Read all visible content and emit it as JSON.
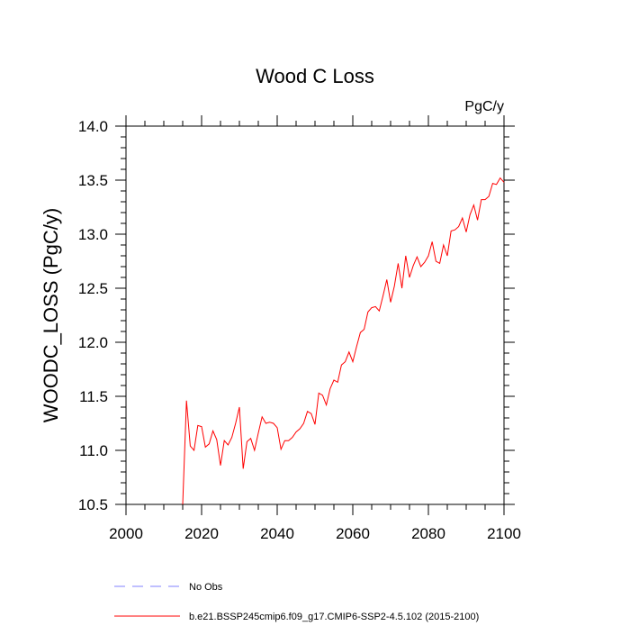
{
  "chart_data": {
    "type": "line",
    "title": "Wood C Loss",
    "units": "PgC/y",
    "y_label": "WOODC_LOSS  (PgC/y)",
    "x": [
      2015,
      2016,
      2017,
      2018,
      2019,
      2020,
      2021,
      2022,
      2023,
      2024,
      2025,
      2026,
      2027,
      2028,
      2029,
      2030,
      2031,
      2032,
      2033,
      2034,
      2035,
      2036,
      2037,
      2038,
      2039,
      2040,
      2041,
      2042,
      2043,
      2044,
      2045,
      2046,
      2047,
      2048,
      2049,
      2050,
      2051,
      2052,
      2053,
      2054,
      2055,
      2056,
      2057,
      2058,
      2059,
      2060,
      2061,
      2062,
      2063,
      2064,
      2065,
      2066,
      2067,
      2068,
      2069,
      2070,
      2071,
      2072,
      2073,
      2074,
      2075,
      2076,
      2077,
      2078,
      2079,
      2080,
      2081,
      2082,
      2083,
      2084,
      2085,
      2086,
      2087,
      2088,
      2089,
      2090,
      2091,
      2092,
      2093,
      2094,
      2095,
      2096,
      2097,
      2098,
      2099,
      2100
    ],
    "series": [
      {
        "name": "No Obs",
        "color": "#8080ff",
        "dashed": true,
        "values": [
          null,
          null,
          null,
          null,
          null,
          null,
          null,
          null,
          null,
          null,
          null,
          null,
          null,
          null,
          null,
          null,
          null,
          null,
          null,
          null,
          null,
          null,
          null,
          null,
          null,
          null,
          null,
          null,
          null,
          null,
          null,
          null,
          null,
          null,
          null,
          null,
          null,
          null,
          null,
          null,
          null,
          null,
          null,
          null,
          null,
          null,
          null,
          null,
          null,
          null,
          null,
          null,
          null,
          null,
          null,
          null,
          null,
          null,
          null,
          null,
          null,
          null,
          null,
          null,
          null,
          null,
          null,
          null,
          null,
          null,
          null,
          null,
          null,
          null,
          null,
          null,
          null,
          null,
          null,
          null,
          null,
          null,
          null,
          null,
          null,
          null
        ]
      },
      {
        "name": "b.e21.BSSP245cmip6.f09_g17.CMIP6-SSP2-4.5.102 (2015-2100)",
        "color": "#ff0000",
        "dashed": false,
        "values": [
          10.5,
          11.46,
          11.04,
          11.0,
          11.23,
          11.22,
          11.03,
          11.06,
          11.18,
          11.1,
          10.86,
          11.09,
          11.05,
          11.12,
          11.25,
          11.4,
          10.83,
          11.08,
          11.11,
          11.0,
          11.16,
          11.31,
          11.25,
          11.26,
          11.25,
          11.21,
          11.01,
          11.09,
          11.09,
          11.12,
          11.17,
          11.2,
          11.25,
          11.36,
          11.34,
          11.24,
          11.53,
          11.51,
          11.42,
          11.57,
          11.65,
          11.63,
          11.79,
          11.82,
          11.91,
          11.82,
          11.96,
          12.09,
          12.12,
          12.28,
          12.32,
          12.33,
          12.29,
          12.43,
          12.58,
          12.37,
          12.52,
          12.73,
          12.5,
          12.8,
          12.6,
          12.71,
          12.79,
          12.7,
          12.74,
          12.8,
          12.93,
          12.75,
          12.73,
          12.9,
          12.8,
          13.03,
          13.04,
          13.07,
          13.15,
          13.02,
          13.18,
          13.27,
          13.13,
          13.32,
          13.32,
          13.35,
          13.47,
          13.46,
          13.52,
          13.48
        ]
      }
    ],
    "xlim": [
      2000,
      2100
    ],
    "xticks": [
      2000,
      2020,
      2040,
      2060,
      2080,
      2100
    ],
    "ylim": [
      10.5,
      14.0
    ],
    "yticks": [
      {
        "value": 10.5,
        "label": "10.5"
      },
      {
        "value": 11.0,
        "label": "11.0"
      },
      {
        "value": 11.5,
        "label": "11.5"
      },
      {
        "value": 12.0,
        "label": "12.0"
      },
      {
        "value": 12.5,
        "label": "12.5"
      },
      {
        "value": 13.0,
        "label": "13.0"
      },
      {
        "value": 13.5,
        "label": "13.5"
      },
      {
        "value": 14.0,
        "label": "14.0"
      }
    ],
    "x_minor_per_major": 4,
    "y_minor_per_major": 5,
    "grid": false
  }
}
